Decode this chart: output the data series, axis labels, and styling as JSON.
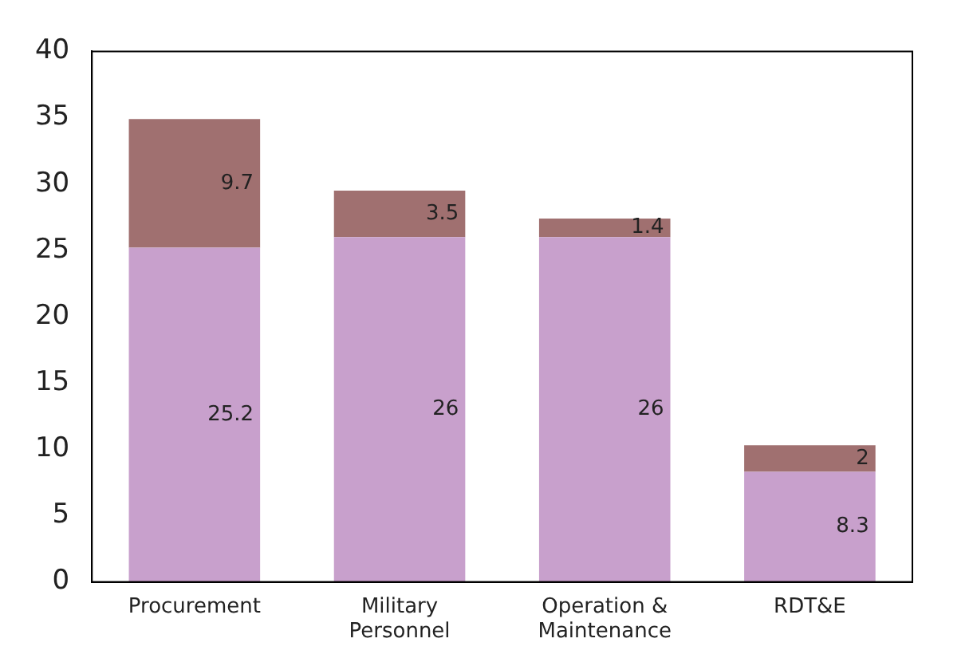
{
  "chart_data": {
    "type": "bar",
    "stacked": true,
    "data_labels": true,
    "grid": false,
    "legend": false,
    "categories": [
      "Procurement",
      "Military Personnel",
      "Operation & Maintenance",
      "RDT&E"
    ],
    "series": [
      {
        "color": "#c8a0cc",
        "values": [
          25.2,
          26,
          26,
          8.3
        ]
      },
      {
        "color": "#a07070",
        "values": [
          9.7,
          3.5,
          1.4,
          2
        ]
      }
    ],
    "ylim": [
      0,
      40
    ],
    "yticks": [
      0,
      5,
      10,
      15,
      20,
      25,
      30,
      35,
      40
    ]
  }
}
